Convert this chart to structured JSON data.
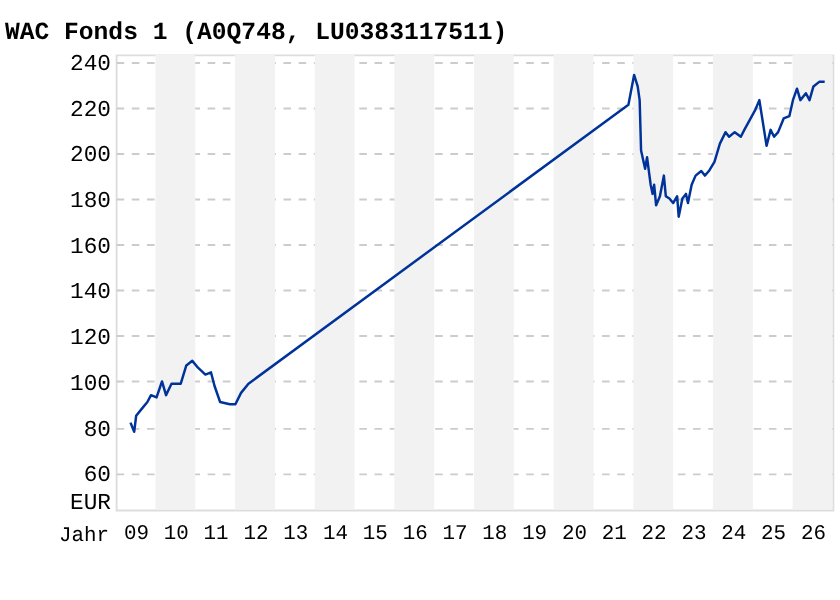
{
  "chart_data": {
    "type": "line",
    "title": "WAC Fonds 1 (A0Q748, LU0383117511)",
    "xlabel": "Jahr",
    "ylabel": "EUR",
    "x": [
      "2009-05-17",
      "2009-06-20",
      "2009-07-08",
      "2009-08-28",
      "2009-10-19",
      "2009-11-21",
      "2010-01-11",
      "2010-03-02",
      "2010-04-08",
      "2010-05-28",
      "2010-08-21",
      "2010-10-11",
      "2010-12-05",
      "2011-01-26",
      "2011-04-04",
      "2011-05-25",
      "2011-06-27",
      "2011-08-17",
      "2011-11-14",
      "2012-01-04",
      "2012-02-25",
      "2012-05-03",
      "2021-11-17",
      "2022-01-08",
      "2022-02-10",
      "2022-02-28",
      "2022-03-13",
      "2022-04-19",
      "2022-05-07",
      "2022-06-09",
      "2022-06-27",
      "2022-07-11",
      "2022-07-29",
      "2022-09-02",
      "2022-10-08",
      "2022-10-26",
      "2022-11-28",
      "2023-01-01",
      "2023-02-07",
      "2023-02-21",
      "2023-03-27",
      "2023-04-29",
      "2023-05-17",
      "2023-06-20",
      "2023-07-26",
      "2023-09-16",
      "2023-10-19",
      "2023-11-25",
      "2024-01-15",
      "2024-03-05",
      "2024-04-26",
      "2024-05-28",
      "2024-07-19",
      "2024-09-13",
      "2024-10-15",
      "2024-12-23",
      "2025-01-26",
      "2025-03-02",
      "2025-04-04",
      "2025-05-07",
      "2025-06-13",
      "2025-07-15",
      "2025-08-21",
      "2025-10-11",
      "2025-12-02",
      "2026-01-04",
      "2026-02-10",
      "2026-03-13",
      "2026-05-03",
      "2026-06-05",
      "2026-07-11",
      "2026-09-02",
      "2026-10-22"
    ],
    "series": [
      {
        "color": "#003399",
        "values": [
          82,
          78,
          85,
          88,
          91,
          94,
          93,
          100,
          94,
          99,
          99,
          107,
          109,
          106,
          103,
          104,
          98,
          91,
          90,
          90,
          95,
          99,
          221,
          234,
          229,
          223,
          201,
          193,
          198,
          186,
          182,
          186,
          177,
          181,
          190,
          181,
          180,
          178,
          181,
          172,
          180,
          182,
          178,
          186,
          190,
          192,
          190,
          192,
          196,
          204,
          209,
          207,
          209,
          207,
          210,
          216,
          219,
          223,
          213,
          203,
          210,
          207,
          209,
          215,
          216,
          223,
          228,
          223,
          226,
          223,
          229,
          231,
          231
        ]
      }
    ],
    "xlim": [
      "2009-01-01",
      "2027-01-01"
    ],
    "xticks": [
      {
        "value": "2009-07-02",
        "label": "09"
      },
      {
        "value": "2010-07-02",
        "label": "10"
      },
      {
        "value": "2011-07-02",
        "label": "11"
      },
      {
        "value": "2012-07-02",
        "label": "12"
      },
      {
        "value": "2013-07-02",
        "label": "13"
      },
      {
        "value": "2014-07-02",
        "label": "14"
      },
      {
        "value": "2015-07-02",
        "label": "15"
      },
      {
        "value": "2016-07-02",
        "label": "16"
      },
      {
        "value": "2017-07-02",
        "label": "17"
      },
      {
        "value": "2018-07-02",
        "label": "18"
      },
      {
        "value": "2019-07-02",
        "label": "19"
      },
      {
        "value": "2020-07-02",
        "label": "20"
      },
      {
        "value": "2021-07-02",
        "label": "21"
      },
      {
        "value": "2022-07-02",
        "label": "22"
      },
      {
        "value": "2023-07-02",
        "label": "23"
      },
      {
        "value": "2024-07-02",
        "label": "24"
      },
      {
        "value": "2025-07-02",
        "label": "25"
      },
      {
        "value": "2026-07-02",
        "label": "26"
      }
    ],
    "ylim": [
      44,
      243
    ],
    "yticks": [
      60,
      80,
      100,
      120,
      140,
      160,
      180,
      200,
      220,
      240
    ],
    "grid": "y",
    "marker": "none",
    "line_style": "solid",
    "bands": [
      {
        "axis": "x",
        "from": "2010-01-01",
        "to": "2011-01-01",
        "color": "#f2f2f2"
      },
      {
        "axis": "x",
        "from": "2012-01-01",
        "to": "2013-01-01",
        "color": "#f2f2f2"
      },
      {
        "axis": "x",
        "from": "2014-01-01",
        "to": "2015-01-01",
        "color": "#f2f2f2"
      },
      {
        "axis": "x",
        "from": "2016-01-01",
        "to": "2017-01-01",
        "color": "#f2f2f2"
      },
      {
        "axis": "x",
        "from": "2018-01-01",
        "to": "2019-01-01",
        "color": "#f2f2f2"
      },
      {
        "axis": "x",
        "from": "2020-01-01",
        "to": "2021-01-01",
        "color": "#f2f2f2"
      },
      {
        "axis": "x",
        "from": "2022-01-01",
        "to": "2023-01-01",
        "color": "#f2f2f2"
      },
      {
        "axis": "x",
        "from": "2024-01-01",
        "to": "2025-01-01",
        "color": "#f2f2f2"
      },
      {
        "axis": "x",
        "from": "2026-01-01",
        "to": "2027-01-01",
        "color": "#f2f2f2"
      }
    ]
  }
}
